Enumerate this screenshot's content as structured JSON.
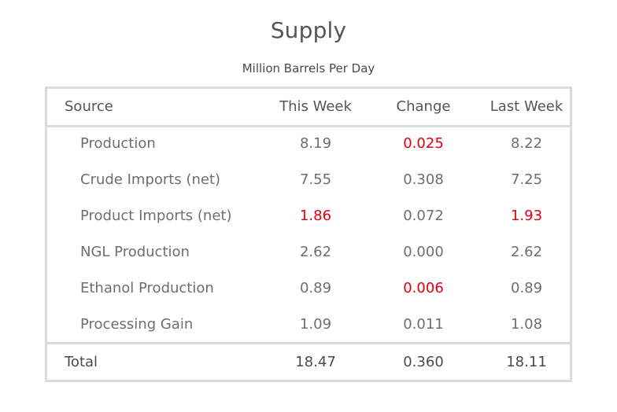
{
  "title": "Supply",
  "subtitle": "Million Barrels Per Day",
  "colors": {
    "highlight": "#e0000f",
    "border": "#dcdcdc",
    "text": "#555555"
  },
  "columns": [
    "Source",
    "This Week",
    "Change",
    "Last Week"
  ],
  "rows": [
    {
      "source": "Production",
      "this_week": "8.19",
      "change": "0.025",
      "last_week": "8.22",
      "highlight": {
        "this_week": false,
        "change": true,
        "last_week": false
      }
    },
    {
      "source": "Crude Imports (net)",
      "this_week": "7.55",
      "change": "0.308",
      "last_week": "7.25",
      "highlight": {
        "this_week": false,
        "change": false,
        "last_week": false
      }
    },
    {
      "source": "Product Imports (net)",
      "this_week": "1.86",
      "change": "0.072",
      "last_week": "1.93",
      "highlight": {
        "this_week": true,
        "change": false,
        "last_week": true
      }
    },
    {
      "source": "NGL Production",
      "this_week": "2.62",
      "change": "0.000",
      "last_week": "2.62",
      "highlight": {
        "this_week": false,
        "change": false,
        "last_week": false
      }
    },
    {
      "source": "Ethanol Production",
      "this_week": "0.89",
      "change": "0.006",
      "last_week": "0.89",
      "highlight": {
        "this_week": false,
        "change": true,
        "last_week": false
      }
    },
    {
      "source": "Processing Gain",
      "this_week": "1.09",
      "change": "0.011",
      "last_week": "1.08",
      "highlight": {
        "this_week": false,
        "change": false,
        "last_week": false
      }
    }
  ],
  "total": {
    "label": "Total",
    "this_week": "18.47",
    "change": "0.360",
    "last_week": "18.11"
  }
}
